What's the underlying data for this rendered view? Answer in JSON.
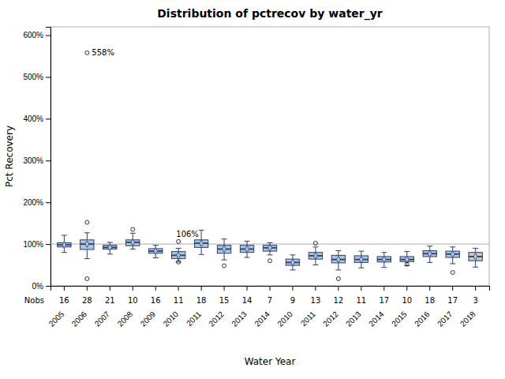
{
  "chart_data": {
    "type": "box",
    "title": "Distribution of pctrecov by water_yr",
    "x_label": "Water Year",
    "y_label": "Pct Recovery",
    "categories": [
      "2005",
      "2006",
      "2007",
      "2008",
      "2009",
      "2010",
      "2011",
      "2012",
      "2013",
      "2014",
      "2010",
      "2011",
      "2012",
      "2013",
      "2014",
      "2015",
      "2016",
      "2017",
      "2018"
    ],
    "nobs_label": "Nobs",
    "nobs": [
      16,
      28,
      21,
      10,
      16,
      11,
      18,
      15,
      14,
      7,
      9,
      13,
      12,
      11,
      17,
      10,
      18,
      17,
      3
    ],
    "boxes": [
      {
        "q1": 93,
        "med": 98,
        "q3": 103,
        "whislo": 80,
        "whishi": 121,
        "mean": 98,
        "fliers": []
      },
      {
        "q1": 87,
        "med": 100,
        "q3": 110,
        "whislo": 65,
        "whishi": 127,
        "mean": 100,
        "fliers": [
          558,
          152,
          17
        ]
      },
      {
        "q1": 88,
        "med": 92,
        "q3": 97,
        "whislo": 76,
        "whishi": 104,
        "mean": 92,
        "fliers": []
      },
      {
        "q1": 96,
        "med": 104,
        "q3": 110,
        "whislo": 88,
        "whishi": 126,
        "mean": 104,
        "fliers": [
          135
        ]
      },
      {
        "q1": 78,
        "med": 83,
        "q3": 89,
        "whislo": 67,
        "whishi": 97,
        "mean": 83,
        "fliers": []
      },
      {
        "q1": 65,
        "med": 73,
        "q3": 82,
        "whislo": 57,
        "whishi": 90,
        "mean": 73,
        "fliers": [
          106,
          57
        ]
      },
      {
        "q1": 92,
        "med": 102,
        "q3": 110,
        "whislo": 75,
        "whishi": 133,
        "mean": 102,
        "fliers": []
      },
      {
        "q1": 78,
        "med": 88,
        "q3": 97,
        "whislo": 62,
        "whishi": 112,
        "mean": 88,
        "fliers": [
          48
        ]
      },
      {
        "q1": 80,
        "med": 88,
        "q3": 97,
        "whislo": 68,
        "whishi": 107,
        "mean": 88,
        "fliers": []
      },
      {
        "q1": 83,
        "med": 91,
        "q3": 97,
        "whislo": 74,
        "whishi": 103,
        "mean": 91,
        "fliers": [
          60
        ]
      },
      {
        "q1": 49,
        "med": 56,
        "q3": 64,
        "whislo": 38,
        "whishi": 74,
        "mean": 56,
        "fliers": []
      },
      {
        "q1": 64,
        "med": 72,
        "q3": 80,
        "whislo": 50,
        "whishi": 93,
        "mean": 72,
        "fliers": [
          102
        ]
      },
      {
        "q1": 55,
        "med": 63,
        "q3": 73,
        "whislo": 38,
        "whishi": 84,
        "mean": 63,
        "fliers": [
          17
        ]
      },
      {
        "q1": 56,
        "med": 63,
        "q3": 72,
        "whislo": 43,
        "whishi": 83,
        "mean": 63,
        "fliers": []
      },
      {
        "q1": 57,
        "med": 63,
        "q3": 70,
        "whislo": 44,
        "whishi": 80,
        "mean": 63,
        "fliers": []
      },
      {
        "q1": 58,
        "med": 63,
        "q3": 70,
        "whislo": 48,
        "whishi": 82,
        "mean": 63,
        "fliers": [
          52
        ]
      },
      {
        "q1": 70,
        "med": 77,
        "q3": 84,
        "whislo": 56,
        "whishi": 95,
        "mean": 77,
        "fliers": []
      },
      {
        "q1": 68,
        "med": 76,
        "q3": 83,
        "whislo": 53,
        "whishi": 93,
        "mean": 76,
        "fliers": [
          32
        ]
      },
      {
        "q1": 60,
        "med": 70,
        "q3": 80,
        "whislo": 45,
        "whishi": 90,
        "mean": 70,
        "fliers": []
      }
    ],
    "colors": [
      "#adc6e0",
      "#adc6e0",
      "#adc6e0",
      "#adc6e0",
      "#adc6e0",
      "#adc6e0",
      "#adc6e0",
      "#adc6e0",
      "#adc6e0",
      "#adc6e0",
      "#adc6e0",
      "#adc6e0",
      "#adc6e0",
      "#adc6e0",
      "#adc6e0",
      "#adc6e0",
      "#adc6e0",
      "#adc6e0",
      "#c8c8c8"
    ],
    "ref_line": 100,
    "annotations": [
      {
        "text": "558%",
        "category_index": 1,
        "y": 558
      },
      {
        "text": "106%",
        "category_index": 5,
        "y": 106
      }
    ],
    "ylim": [
      0,
      620
    ],
    "yticks": [
      {
        "value": 0,
        "label": "0%"
      },
      {
        "value": 100,
        "label": "100%"
      },
      {
        "value": 200,
        "label": "200%"
      },
      {
        "value": 300,
        "label": "300%"
      },
      {
        "value": 400,
        "label": "400%"
      },
      {
        "value": 500,
        "label": "500%"
      },
      {
        "value": 600,
        "label": "600%"
      }
    ],
    "grid": false
  }
}
